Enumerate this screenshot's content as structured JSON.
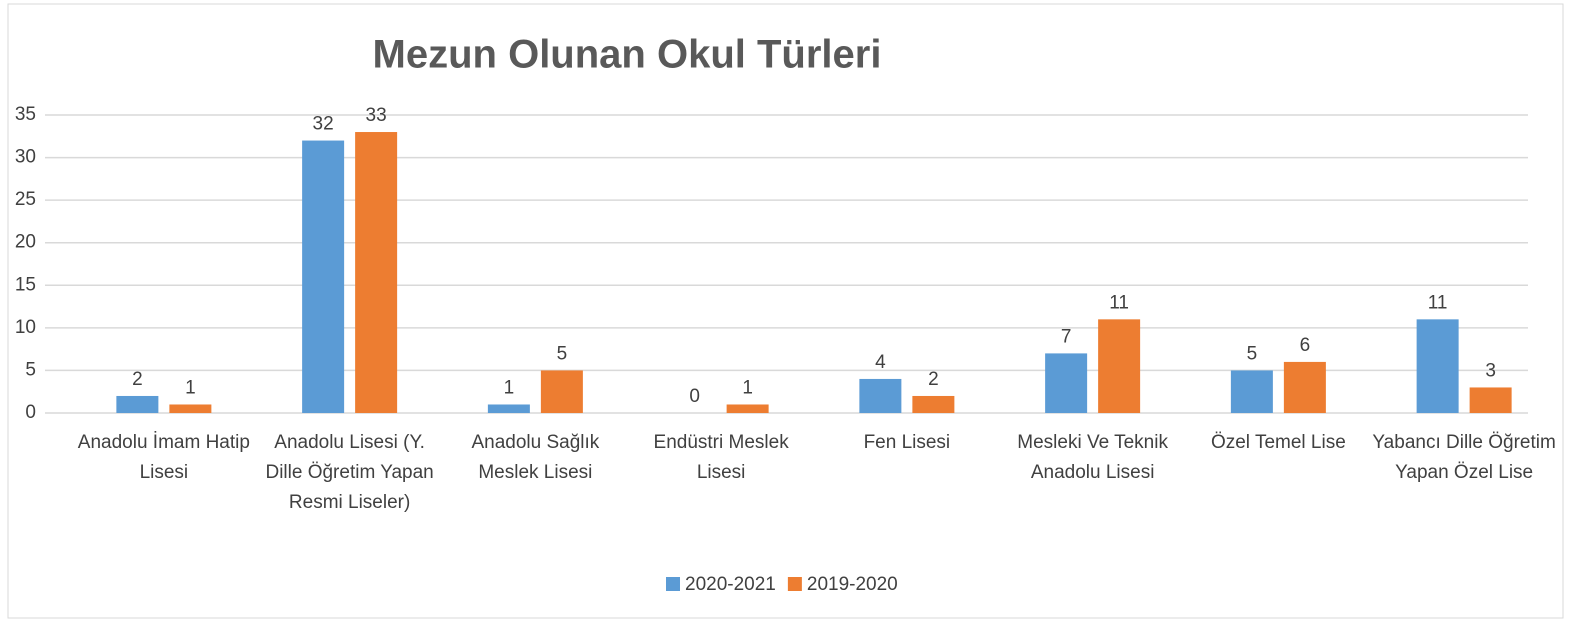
{
  "chart_data": {
    "type": "bar",
    "title": "Mezun Olunan Okul Türleri",
    "categories": [
      "Anadolu İmam Hatip Lisesi",
      "Anadolu Lisesi (Y. Dille Öğretim Yapan Resmi Liseler)",
      "Anadolu Sağlık Meslek Lisesi",
      "Endüstri Meslek Lisesi",
      "Fen Lisesi",
      "Mesleki Ve Teknik Anadolu Lisesi",
      "Özel Temel Lise",
      "Yabancı Dille Öğretim Yapan Özel Lise"
    ],
    "series": [
      {
        "name": "2020-2021",
        "color": "#5b9bd5",
        "values": [
          2,
          32,
          1,
          0,
          4,
          7,
          5,
          11
        ]
      },
      {
        "name": "2019-2020",
        "color": "#ed7d31",
        "values": [
          1,
          33,
          5,
          1,
          2,
          11,
          6,
          3
        ]
      }
    ],
    "ylim": [
      0,
      35
    ],
    "yticks": [
      0,
      5,
      10,
      15,
      20,
      25,
      30,
      35
    ],
    "grid": true,
    "legend": "bottom"
  }
}
